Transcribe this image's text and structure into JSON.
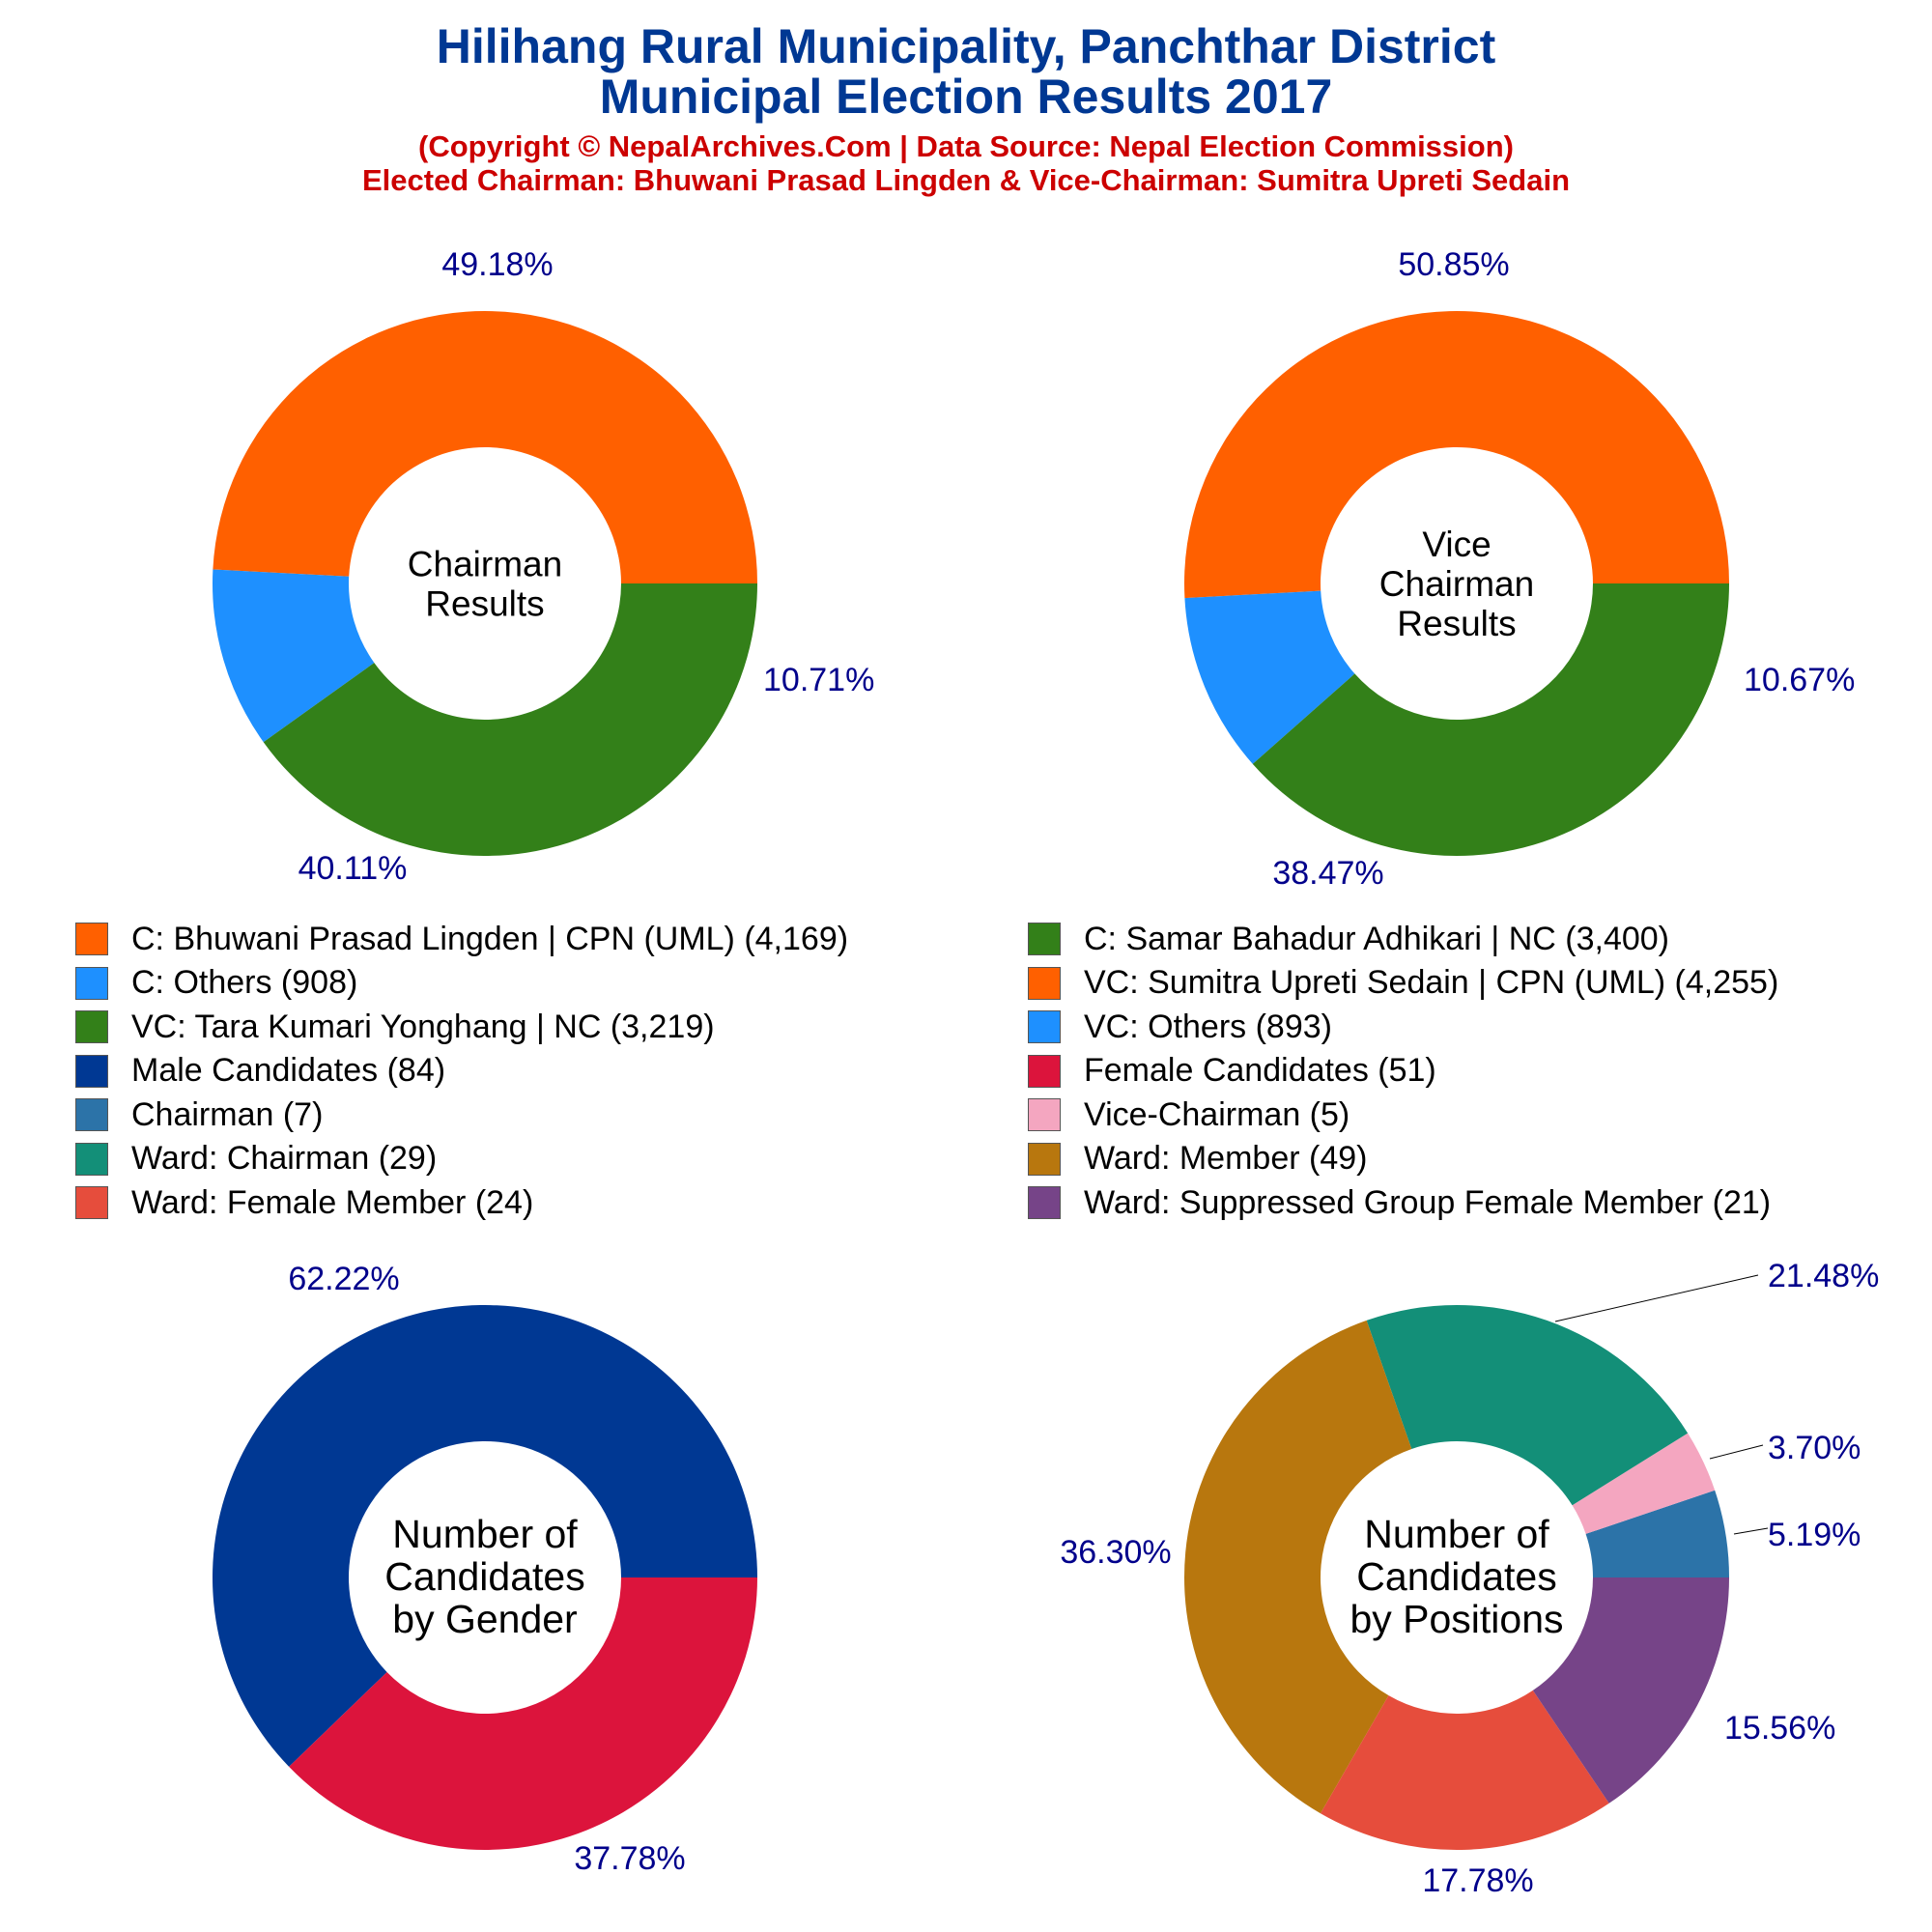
{
  "header": {
    "title_line1": "Hilihang Rural Municipality, Panchthar District",
    "title_line2": "Municipal Election Results 2017",
    "subtitle_line1": "(Copyright © NepalArchives.Com | Data Source: Nepal Election Commission)",
    "subtitle_line2": "Elected Chairman: Bhuwani Prasad Lingden & Vice-Chairman: Sumitra Upreti Sedain"
  },
  "legend": [
    {
      "label": "C: Bhuwani Prasad Lingden | CPN (UML) (4,169)",
      "color": "#ff6000"
    },
    {
      "label": "C: Samar Bahadur Adhikari | NC (3,400)",
      "color": "#338019"
    },
    {
      "label": "C: Others (908)",
      "color": "#1e90ff"
    },
    {
      "label": "VC: Sumitra Upreti Sedain | CPN (UML) (4,255)",
      "color": "#ff6000"
    },
    {
      "label": "VC: Tara Kumari Yonghang | NC (3,219)",
      "color": "#338019"
    },
    {
      "label": "VC: Others (893)",
      "color": "#1e90ff"
    },
    {
      "label": "Male Candidates (84)",
      "color": "#003893"
    },
    {
      "label": "Female Candidates (51)",
      "color": "#dc143c"
    },
    {
      "label": "Chairman (7)",
      "color": "#2c73a8"
    },
    {
      "label": "Vice-Chairman (5)",
      "color": "#f4a6c0"
    },
    {
      "label": "Ward: Chairman (29)",
      "color": "#138f78"
    },
    {
      "label": "Ward: Member (49)",
      "color": "#b8770e"
    },
    {
      "label": "Ward: Female Member (24)",
      "color": "#e64d3c"
    },
    {
      "label": "Ward: Suppressed Group Female Member (21)",
      "color": "#764488"
    }
  ],
  "chart_data": [
    {
      "type": "pie",
      "center_label": [
        "Chairman",
        "Results"
      ],
      "slices": [
        {
          "value": 4169,
          "color": "#ff6000",
          "pct_label": "49.18%"
        },
        {
          "value": 908,
          "color": "#1e90ff",
          "pct_label": "10.71%"
        },
        {
          "value": 3400,
          "color": "#338019",
          "pct_label": "40.11%"
        }
      ]
    },
    {
      "type": "pie",
      "center_label": [
        "Vice",
        "Chairman",
        "Results"
      ],
      "slices": [
        {
          "value": 4255,
          "color": "#ff6000",
          "pct_label": "50.85%"
        },
        {
          "value": 893,
          "color": "#1e90ff",
          "pct_label": "10.67%"
        },
        {
          "value": 3219,
          "color": "#338019",
          "pct_label": "38.47%"
        }
      ]
    },
    {
      "type": "pie",
      "center_label": [
        "Number of",
        "Candidates",
        "by Gender"
      ],
      "slices": [
        {
          "value": 84,
          "color": "#003893",
          "pct_label": "62.22%"
        },
        {
          "value": 51,
          "color": "#dc143c",
          "pct_label": "37.78%"
        }
      ]
    },
    {
      "type": "pie",
      "center_label": [
        "Number of",
        "Candidates",
        "by Positions"
      ],
      "slices": [
        {
          "value": 7,
          "color": "#2c73a8",
          "pct_label": "5.19%"
        },
        {
          "value": 5,
          "color": "#f4a6c0",
          "pct_label": "3.70%"
        },
        {
          "value": 29,
          "color": "#138f78",
          "pct_label": "21.48%"
        },
        {
          "value": 49,
          "color": "#b8770e",
          "pct_label": "36.30%"
        },
        {
          "value": 24,
          "color": "#e64d3c",
          "pct_label": "17.78%"
        },
        {
          "value": 21,
          "color": "#764488",
          "pct_label": "15.56%"
        }
      ]
    }
  ]
}
